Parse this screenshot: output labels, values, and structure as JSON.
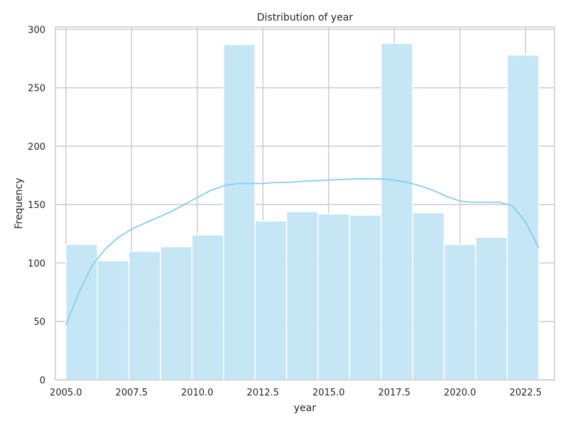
{
  "chart_data": {
    "type": "bar",
    "title": "Distribution of year",
    "xlabel": "year",
    "ylabel": "Frequency",
    "xlim": [
      2004.6,
      2023.6
    ],
    "ylim": [
      0,
      302
    ],
    "xticks": [
      "2005.0",
      "2007.5",
      "2010.0",
      "2012.5",
      "2015.0",
      "2017.5",
      "2020.0",
      "2022.5"
    ],
    "xtick_values": [
      2005.0,
      2007.5,
      2010.0,
      2012.5,
      2015.0,
      2017.5,
      2020.0,
      2022.5
    ],
    "yticks": [
      "0",
      "50",
      "100",
      "150",
      "200",
      "250",
      "300"
    ],
    "ytick_values": [
      0,
      50,
      100,
      150,
      200,
      250,
      300
    ],
    "grid": true,
    "bins": [
      {
        "start": 2005.0,
        "end": 2006.2,
        "value": 116
      },
      {
        "start": 2006.2,
        "end": 2007.4,
        "value": 102
      },
      {
        "start": 2007.4,
        "end": 2008.6,
        "value": 110
      },
      {
        "start": 2008.6,
        "end": 2009.8,
        "value": 114
      },
      {
        "start": 2009.8,
        "end": 2011.0,
        "value": 124
      },
      {
        "start": 2011.0,
        "end": 2012.2,
        "value": 287
      },
      {
        "start": 2012.2,
        "end": 2013.4,
        "value": 136
      },
      {
        "start": 2013.4,
        "end": 2014.6,
        "value": 144
      },
      {
        "start": 2014.6,
        "end": 2015.8,
        "value": 142
      },
      {
        "start": 2015.8,
        "end": 2017.0,
        "value": 141
      },
      {
        "start": 2017.0,
        "end": 2018.2,
        "value": 288
      },
      {
        "start": 2018.2,
        "end": 2019.4,
        "value": 143
      },
      {
        "start": 2019.4,
        "end": 2020.6,
        "value": 116
      },
      {
        "start": 2020.6,
        "end": 2021.8,
        "value": 122
      },
      {
        "start": 2021.8,
        "end": 2023.0,
        "value": 278
      }
    ],
    "kde": {
      "x": [
        2005.0,
        2005.5,
        2006.0,
        2006.5,
        2007.0,
        2007.5,
        2008.0,
        2008.5,
        2009.0,
        2009.5,
        2010.0,
        2010.5,
        2011.0,
        2011.5,
        2012.0,
        2012.5,
        2013.0,
        2013.5,
        2014.0,
        2015.0,
        2016.0,
        2017.0,
        2017.5,
        2018.0,
        2018.5,
        2019.0,
        2019.5,
        2020.0,
        2020.5,
        2021.0,
        2021.5,
        2022.0,
        2022.5,
        2023.0
      ],
      "y": [
        47,
        75,
        98,
        112,
        122,
        129,
        134,
        139,
        144,
        150,
        156,
        162,
        166,
        168,
        168,
        168,
        169,
        169,
        170,
        171,
        172,
        172,
        171,
        169,
        166,
        162,
        157,
        153,
        152,
        152,
        152,
        149,
        135,
        113
      ]
    },
    "colors": {
      "bar_fill": "#c2e5f4",
      "bar_edge": "#ffffff",
      "kde_line": "#87ceeb",
      "grid": "#cccccc",
      "spine": "#cccccc",
      "background": "#ffffff"
    }
  }
}
